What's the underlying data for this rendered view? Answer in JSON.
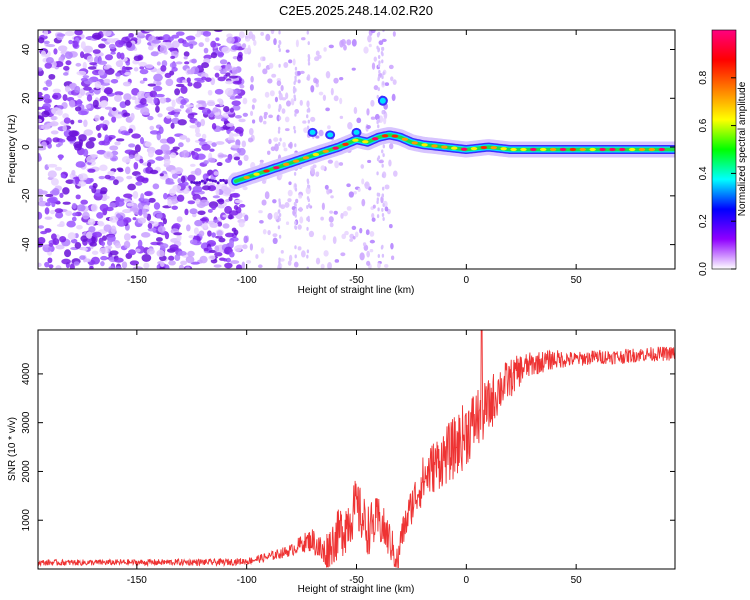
{
  "title": "C2E5.2025.248.14.02.R20",
  "chart_data": [
    {
      "type": "heatmap",
      "xlabel": "Height of straight line (km)",
      "ylabel": "Frequency (Hz)",
      "xlim": [
        -195,
        95
      ],
      "ylim": [
        -50,
        48
      ],
      "xticks": [
        {
          "v": -150,
          "label": "-150"
        },
        {
          "v": -100,
          "label": "-100"
        },
        {
          "v": -50,
          "label": "-50"
        },
        {
          "v": 0,
          "label": "0"
        },
        {
          "v": 50,
          "label": "50"
        }
      ],
      "yticks": [
        {
          "v": 40,
          "label": "40"
        },
        {
          "v": 20,
          "label": "20"
        },
        {
          "v": 0,
          "label": "0"
        },
        {
          "v": -20,
          "label": "-20"
        },
        {
          "v": -40,
          "label": "-40"
        }
      ],
      "ridge": {
        "x": [
          -105,
          -95,
          -85,
          -75,
          -65,
          -58,
          -50,
          -45,
          -40,
          -35,
          -30,
          -25,
          -20,
          -10,
          0,
          10,
          20,
          40,
          60,
          80,
          95
        ],
        "y": [
          -14,
          -11,
          -8,
          -5,
          -2,
          0,
          3,
          2,
          4,
          5,
          4,
          2,
          1,
          0,
          -1,
          0,
          -1,
          -1,
          -1,
          -1,
          -1
        ]
      },
      "colorbar": {
        "label": "Normalized spectral amplitude",
        "range": [
          0,
          1
        ],
        "ticks": [
          {
            "v": 0.0,
            "label": "0.0"
          },
          {
            "v": 0.2,
            "label": "0.2"
          },
          {
            "v": 0.4,
            "label": "0.4"
          },
          {
            "v": 0.6,
            "label": "0.6"
          },
          {
            "v": 0.8,
            "label": "0.8"
          }
        ],
        "colors": [
          "#ffffff",
          "#8f00ff",
          "#0000ff",
          "#00ffff",
          "#00ff00",
          "#ffff00",
          "#ff8000",
          "#ff0000",
          "#ff0080"
        ]
      }
    },
    {
      "type": "line",
      "xlabel": "Height of straight line (km)",
      "ylabel": "SNR (10 * v/v)",
      "xlim": [
        -195,
        95
      ],
      "ylim": [
        0,
        4900
      ],
      "color": "#ee3333",
      "xticks": [
        {
          "v": -150,
          "label": "-150"
        },
        {
          "v": -100,
          "label": "-100"
        },
        {
          "v": -50,
          "label": "-50"
        },
        {
          "v": 0,
          "label": "0"
        },
        {
          "v": 50,
          "label": "50"
        }
      ],
      "yticks": [
        {
          "v": 1000,
          "label": "1000"
        },
        {
          "v": 2000,
          "label": "2000"
        },
        {
          "v": 3000,
          "label": "3000"
        },
        {
          "v": 4000,
          "label": "4000"
        }
      ],
      "envelope": {
        "x": [
          -195,
          -110,
          -100,
          -90,
          -80,
          -75,
          -70,
          -65,
          -60,
          -55,
          -50,
          -45,
          -40,
          -35,
          -31,
          -30,
          -25,
          -20,
          -15,
          -10,
          -5,
          0,
          5,
          10,
          15,
          20,
          25,
          30,
          40,
          50,
          60,
          70,
          80,
          95
        ],
        "y": [
          130,
          140,
          160,
          250,
          380,
          520,
          600,
          300,
          600,
          900,
          1300,
          800,
          1000,
          600,
          100,
          600,
          1300,
          1800,
          2100,
          2300,
          2500,
          2800,
          3100,
          3300,
          3700,
          3900,
          4100,
          4200,
          4300,
          4300,
          4350,
          4350,
          4400,
          4420
        ]
      },
      "noise_amplitude": {
        "x": [
          -195,
          -100,
          -80,
          -70,
          -55,
          -40,
          -30,
          -20,
          0,
          10,
          20,
          30,
          50,
          95
        ],
        "y": [
          60,
          70,
          120,
          250,
          600,
          500,
          300,
          500,
          700,
          600,
          400,
          250,
          150,
          150
        ]
      }
    }
  ]
}
